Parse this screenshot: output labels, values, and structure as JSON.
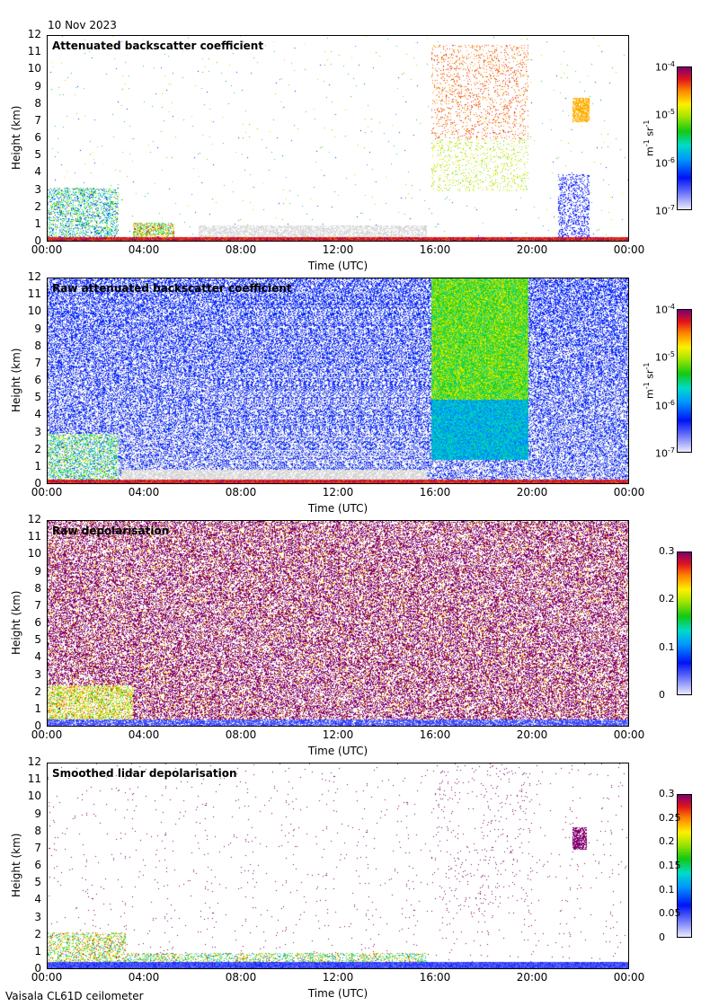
{
  "date": "10 Nov 2023",
  "instrument": "Vaisala CL61D ceilometer",
  "chart_data": [
    {
      "type": "heatmap",
      "title": "Attenuated backscatter coefficient",
      "xlabel": "Time (UTC)",
      "ylabel": "Height (km)",
      "xticks": [
        "00:00",
        "04:00",
        "08:00",
        "12:00",
        "16:00",
        "20:00",
        "00:00"
      ],
      "yticks": [
        "0",
        "1",
        "2",
        "3",
        "4",
        "5",
        "6",
        "7",
        "8",
        "9",
        "10",
        "11",
        "12"
      ],
      "ylim": [
        0,
        12
      ],
      "colorbar": {
        "scale": "log",
        "range": [
          1e-07,
          0.0001
        ],
        "labels": [
          {
            "base": "10",
            "exp": "-4"
          },
          {
            "base": "10",
            "exp": "-5"
          },
          {
            "base": "10",
            "exp": "-6"
          },
          {
            "base": "10",
            "exp": "-7"
          }
        ],
        "unit": "m-1 sr-1"
      }
    },
    {
      "type": "heatmap",
      "title": "Raw attenuated backscatter coefficient",
      "xlabel": "Time (UTC)",
      "ylabel": "Height (km)",
      "xticks": [
        "00:00",
        "04:00",
        "08:00",
        "12:00",
        "16:00",
        "20:00",
        "00:00"
      ],
      "yticks": [
        "0",
        "1",
        "2",
        "3",
        "4",
        "5",
        "6",
        "7",
        "8",
        "9",
        "10",
        "11",
        "12"
      ],
      "ylim": [
        0,
        12
      ],
      "colorbar": {
        "scale": "log",
        "range": [
          1e-07,
          0.0001
        ],
        "labels": [
          {
            "base": "10",
            "exp": "-4"
          },
          {
            "base": "10",
            "exp": "-5"
          },
          {
            "base": "10",
            "exp": "-6"
          },
          {
            "base": "10",
            "exp": "-7"
          }
        ],
        "unit": "m-1 sr-1"
      }
    },
    {
      "type": "heatmap",
      "title": "Raw depolarisation",
      "xlabel": "Time (UTC)",
      "ylabel": "Height (km)",
      "xticks": [
        "00:00",
        "04:00",
        "08:00",
        "12:00",
        "16:00",
        "20:00",
        "00:00"
      ],
      "yticks": [
        "0",
        "1",
        "2",
        "3",
        "4",
        "5",
        "6",
        "7",
        "8",
        "9",
        "10",
        "11",
        "12"
      ],
      "ylim": [
        0,
        12
      ],
      "colorbar": {
        "scale": "linear",
        "range": [
          0,
          0.3
        ],
        "labels": [
          "0.3",
          "0.2",
          "0.1",
          "0"
        ],
        "unit": ""
      }
    },
    {
      "type": "heatmap",
      "title": "Smoothed lidar depolarisation",
      "xlabel": "Time (UTC)",
      "ylabel": "Height (km)",
      "xticks": [
        "00:00",
        "04:00",
        "08:00",
        "12:00",
        "16:00",
        "20:00",
        "00:00"
      ],
      "yticks": [
        "0",
        "1",
        "2",
        "3",
        "4",
        "5",
        "6",
        "7",
        "8",
        "9",
        "10",
        "11",
        "12"
      ],
      "ylim": [
        0,
        12
      ],
      "colorbar": {
        "scale": "linear",
        "range": [
          0,
          0.3
        ],
        "labels": [
          "0.3",
          "0.25",
          "0.2",
          "0.15",
          "0.1",
          "0.05",
          "0"
        ],
        "unit": ""
      }
    }
  ]
}
